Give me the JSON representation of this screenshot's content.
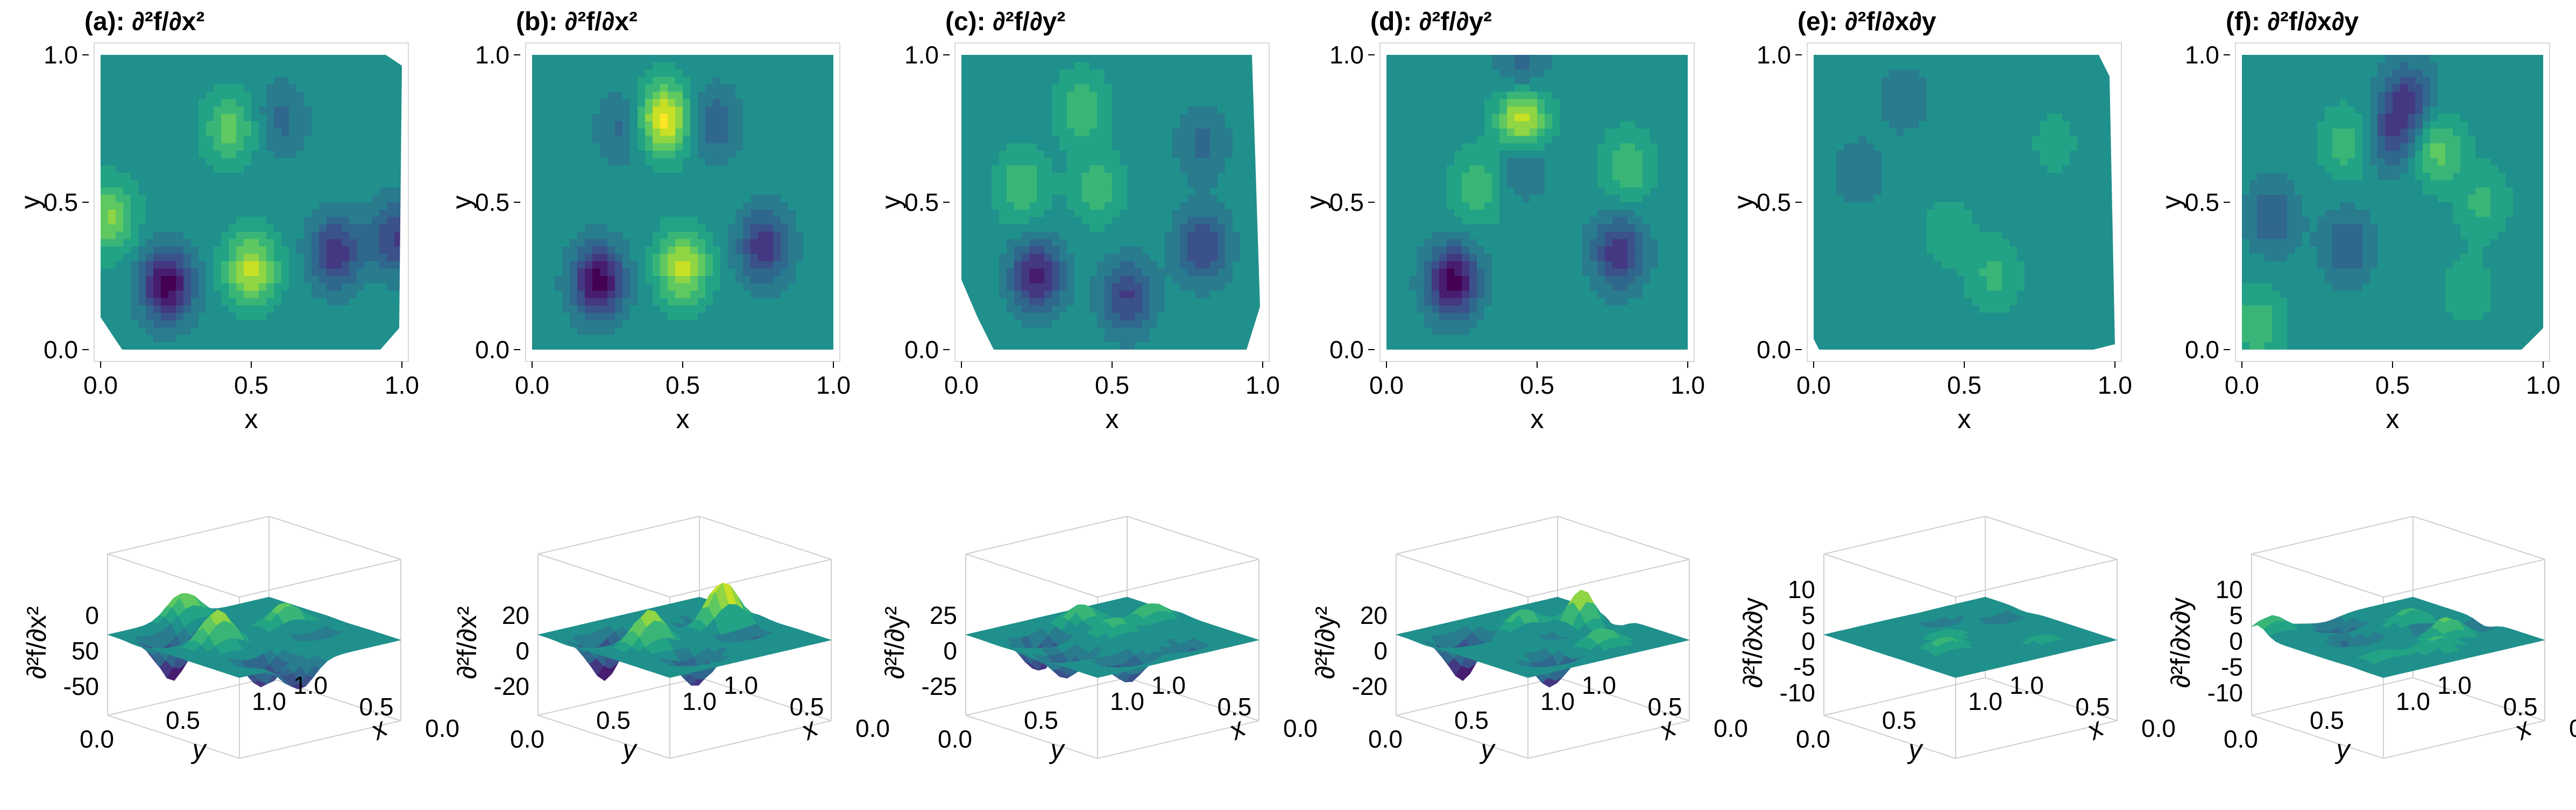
{
  "chart_data": [
    {
      "type": "heatmap",
      "title": "(a): ∂²f/∂x²",
      "xlabel": "x",
      "ylabel": "y",
      "xlim": [
        0,
        1
      ],
      "ylim": [
        0,
        1
      ],
      "xticks": [
        "0.0",
        "0.5",
        "1.0"
      ],
      "yticks": [
        "0.0",
        "0.5",
        "1.0"
      ],
      "description_colormap": "viridis",
      "peaks": [
        {
          "x": 0.22,
          "y": 0.22,
          "value": -1.0
        },
        {
          "x": 0.5,
          "y": 0.27,
          "value": 0.8
        },
        {
          "x": 0.78,
          "y": 0.33,
          "value": -0.7
        },
        {
          "x": 0.43,
          "y": 0.75,
          "value": 0.5
        },
        {
          "x": 0.6,
          "y": 0.78,
          "value": -0.3
        },
        {
          "x": 0.03,
          "y": 0.45,
          "value": 0.6
        },
        {
          "x": 0.98,
          "y": 0.38,
          "value": -0.6
        }
      ]
    },
    {
      "type": "heatmap",
      "title": "(b): ∂²f/∂x²",
      "xlabel": "x",
      "ylabel": "y",
      "xlim": [
        0,
        1
      ],
      "ylim": [
        0,
        1
      ],
      "xticks": [
        "0.0",
        "0.5",
        "1.0"
      ],
      "yticks": [
        "0.0",
        "0.5",
        "1.0"
      ],
      "peaks": [
        {
          "x": 0.22,
          "y": 0.23,
          "value": -1.0
        },
        {
          "x": 0.5,
          "y": 0.28,
          "value": 0.8
        },
        {
          "x": 0.77,
          "y": 0.35,
          "value": -0.7
        },
        {
          "x": 0.44,
          "y": 0.78,
          "value": 1.0
        },
        {
          "x": 0.6,
          "y": 0.77,
          "value": -0.4
        },
        {
          "x": 0.3,
          "y": 0.75,
          "value": -0.3
        }
      ]
    },
    {
      "type": "heatmap",
      "title": "(c): ∂²f/∂y²",
      "xlabel": "x",
      "ylabel": "y",
      "xlim": [
        0,
        1
      ],
      "ylim": [
        0,
        1
      ],
      "xticks": [
        "0.0",
        "0.5",
        "1.0"
      ],
      "yticks": [
        "0.0",
        "0.5",
        "1.0"
      ],
      "peaks": [
        {
          "x": 0.25,
          "y": 0.25,
          "value": -0.8
        },
        {
          "x": 0.55,
          "y": 0.18,
          "value": -0.6
        },
        {
          "x": 0.45,
          "y": 0.55,
          "value": 0.35
        },
        {
          "x": 0.8,
          "y": 0.35,
          "value": -0.6
        },
        {
          "x": 0.4,
          "y": 0.82,
          "value": 0.4
        },
        {
          "x": 0.2,
          "y": 0.55,
          "value": 0.4
        },
        {
          "x": 0.8,
          "y": 0.7,
          "value": -0.3
        }
      ]
    },
    {
      "type": "heatmap",
      "title": "(d): ∂²f/∂y²",
      "xlabel": "x",
      "ylabel": "y",
      "xlim": [
        0,
        1
      ],
      "ylim": [
        0,
        1
      ],
      "xticks": [
        "0.0",
        "0.5",
        "1.0"
      ],
      "yticks": [
        "0.0",
        "0.5",
        "1.0"
      ],
      "peaks": [
        {
          "x": 0.22,
          "y": 0.23,
          "value": -1.0
        },
        {
          "x": 0.77,
          "y": 0.33,
          "value": -0.7
        },
        {
          "x": 0.45,
          "y": 0.78,
          "value": 1.0
        },
        {
          "x": 0.45,
          "y": 0.93,
          "value": -0.4
        },
        {
          "x": 0.45,
          "y": 0.65,
          "value": -0.4
        },
        {
          "x": 0.3,
          "y": 0.55,
          "value": 0.4
        },
        {
          "x": 0.8,
          "y": 0.62,
          "value": 0.4
        }
      ]
    },
    {
      "type": "heatmap",
      "title": "(e): ∂²f/∂x∂y",
      "xlabel": "x",
      "ylabel": "y",
      "xlim": [
        0,
        1
      ],
      "ylim": [
        0,
        1
      ],
      "xticks": [
        "0.0",
        "0.5",
        "1.0"
      ],
      "yticks": [
        "0.0",
        "0.5",
        "1.0"
      ],
      "peaks": [
        {
          "x": 0.15,
          "y": 0.6,
          "value": -0.2
        },
        {
          "x": 0.45,
          "y": 0.4,
          "value": 0.2
        },
        {
          "x": 0.6,
          "y": 0.25,
          "value": 0.3
        },
        {
          "x": 0.8,
          "y": 0.7,
          "value": 0.15
        },
        {
          "x": 0.3,
          "y": 0.85,
          "value": -0.2
        }
      ]
    },
    {
      "type": "heatmap",
      "title": "(f): ∂²f/∂x∂y",
      "xlabel": "x",
      "ylabel": "y",
      "xlim": [
        0,
        1
      ],
      "ylim": [
        0,
        1
      ],
      "xticks": [
        "0.0",
        "0.5",
        "1.0"
      ],
      "yticks": [
        "0.0",
        "0.5",
        "1.0"
      ],
      "peaks": [
        {
          "x": 0.5,
          "y": 0.72,
          "value": -0.5
        },
        {
          "x": 0.55,
          "y": 0.85,
          "value": -0.6
        },
        {
          "x": 0.65,
          "y": 0.68,
          "value": 0.5
        },
        {
          "x": 0.35,
          "y": 0.7,
          "value": 0.35
        },
        {
          "x": 0.1,
          "y": 0.45,
          "value": -0.4
        },
        {
          "x": 0.35,
          "y": 0.35,
          "value": -0.4
        },
        {
          "x": 0.8,
          "y": 0.5,
          "value": 0.3
        },
        {
          "x": 0.05,
          "y": 0.08,
          "value": 0.4
        },
        {
          "x": 0.75,
          "y": 0.2,
          "value": 0.2
        }
      ]
    },
    {
      "type": "surface",
      "title": "",
      "zlabel": "∂²f/∂x²",
      "xlabel": "y",
      "ylabel": "x",
      "zticks": [
        "0",
        "50",
        "-50"
      ],
      "yticks_left": [
        "0.0",
        "0.5",
        "1.0"
      ],
      "xticks_right": [
        "0.0",
        "0.5",
        "1.0"
      ]
    },
    {
      "type": "surface",
      "title": "",
      "zlabel": "∂²f/∂x²",
      "xlabel": "y",
      "ylabel": "x",
      "zticks": [
        "20",
        "0",
        "-20"
      ],
      "yticks_left": [
        "0.0",
        "0.5",
        "1.0"
      ],
      "xticks_right": [
        "0.0",
        "0.5",
        "1.0"
      ]
    },
    {
      "type": "surface",
      "title": "",
      "zlabel": "∂²f/∂y²",
      "xlabel": "y",
      "ylabel": "x",
      "zticks": [
        "25",
        "0",
        "-25"
      ],
      "yticks_left": [
        "0.0",
        "0.5",
        "1.0"
      ],
      "xticks_right": [
        "0.0",
        "0.5",
        "1.0"
      ]
    },
    {
      "type": "surface",
      "title": "",
      "zlabel": "∂²f/∂y²",
      "xlabel": "y",
      "ylabel": "x",
      "zticks": [
        "20",
        "0",
        "-20"
      ],
      "yticks_left": [
        "0.0",
        "0.5",
        "1.0"
      ],
      "xticks_right": [
        "0.0",
        "0.5",
        "1.0"
      ]
    },
    {
      "type": "surface",
      "title": "",
      "zlabel": "∂²f/∂x∂y",
      "xlabel": "y",
      "ylabel": "x",
      "zticks": [
        "10",
        "5",
        "0",
        "-5",
        "-10"
      ],
      "yticks_left": [
        "0.0",
        "0.5",
        "1.0"
      ],
      "xticks_right": [
        "0.0",
        "0.5",
        "1.0"
      ]
    },
    {
      "type": "surface",
      "title": "",
      "zlabel": "∂²f/∂x∂y",
      "xlabel": "y",
      "ylabel": "x",
      "zticks": [
        "10",
        "5",
        "0",
        "-5",
        "-10"
      ],
      "yticks_left": [
        "0.0",
        "0.5",
        "1.0"
      ],
      "xticks_right": [
        "0.0",
        "0.5",
        "1.0"
      ]
    }
  ]
}
